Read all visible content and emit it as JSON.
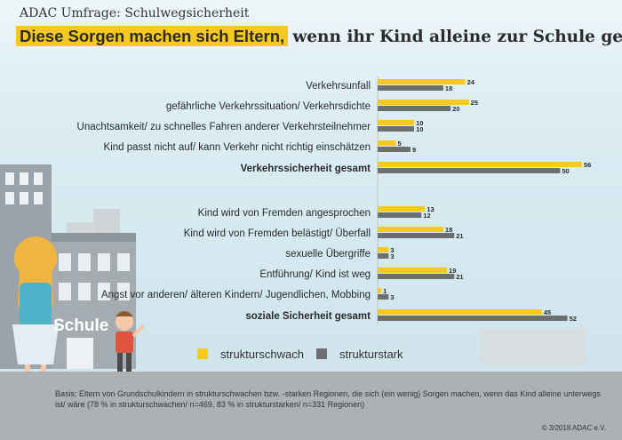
{
  "header": {
    "supertitle": "ADAC Umfrage: Schulwegsicherheit",
    "headline_highlight": "Diese Sorgen machen sich Eltern,",
    "headline_rest": "wenn ihr Kind alleine zur Schule geht"
  },
  "illustration": {
    "school_sign": "Schule"
  },
  "colors": {
    "strukturschwach": "#f7c820",
    "strukturstark": "#6d6e70",
    "highlight": "#f7c820"
  },
  "chart_data": {
    "type": "bar",
    "orientation": "horizontal",
    "categories": [
      "Verkehrsunfall",
      "gefährliche Verkehrssituation/ Verkehrsdichte",
      "Unachtsamkeit/ zu schnelles Fahren anderer Verkehrsteilnehmer",
      "Kind passt nicht auf/ kann Verkehr nicht richtig einschätzen",
      "Verkehrssicherheit gesamt",
      "Kind wird von Fremden angesprochen",
      "Kind wird von Fremden belästigt/ Überfall",
      "sexuelle Übergriffe",
      "Entführung/ Kind ist weg",
      "Angst vor anderen/ älteren Kindern/ Jugendlichen, Mobbing",
      "soziale Sicherheit gesamt"
    ],
    "bold_categories": [
      "Verkehrssicherheit gesamt",
      "soziale Sicherheit gesamt"
    ],
    "series": [
      {
        "name": "strukturschwach",
        "values": [
          24,
          25,
          10,
          5,
          56,
          13,
          18,
          3,
          19,
          1,
          45
        ]
      },
      {
        "name": "strukturstark",
        "values": [
          18,
          20,
          10,
          9,
          50,
          12,
          21,
          3,
          21,
          3,
          52
        ]
      }
    ],
    "xlim": [
      0,
      56
    ],
    "legend_position": "bottom",
    "grid": false
  },
  "footer": {
    "basis": "Basis: Eltern von Grundschulkindern in strukturschwachen bzw. -starken Regionen, die sich (ein wenig) Sorgen machen, wenn das Kind alleine unterwegs ist/ wäre (78 % in strukturschwachen/ n=469, 83 % in strukturstarken/ n=331 Regionen)",
    "copyright": "© 3/2018  ADAC e.V."
  }
}
